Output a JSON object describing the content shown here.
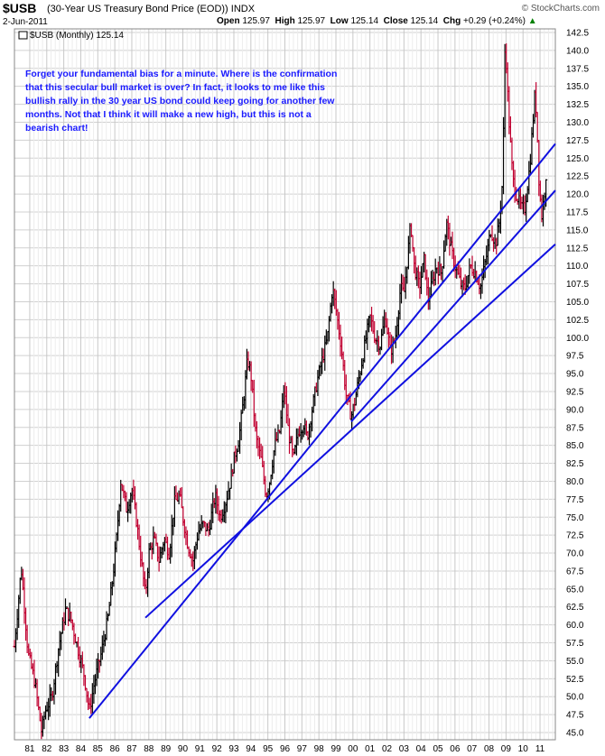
{
  "header": {
    "symbol": "$USB",
    "description": "(30-Year US Treasury Bond Price (EOD))",
    "exchange": "INDX",
    "brand": "© StockCharts.com",
    "date": "2-Jun-2011",
    "open_label": "Open",
    "open": "125.97",
    "high_label": "High",
    "high": "125.97",
    "low_label": "Low",
    "low": "125.14",
    "close_label": "Close",
    "close": "125.14",
    "chg_label": "Chg",
    "chg": "+0.29 (+0.24%)"
  },
  "legend": {
    "text": "$USB (Monthly) 125.14"
  },
  "annotation": "Forget your fundamental bias for a minute. Where is the confirmation that this secular bull market is over? In fact, it looks to me like this bullish rally in the 30 year US bond could keep going for another few months. Not that I think it will make a new high, but this is not a bearish chart!",
  "colors": {
    "up": "#000000",
    "down": "#c00030",
    "trendline": "#1010e0",
    "grid": "#d0d0d0",
    "annotation": "#1a1aff",
    "arrow": "#008000"
  },
  "chart_data": {
    "type": "bar",
    "subtype": "ohlc-monthly",
    "ylim": [
      44,
      143
    ],
    "xlim": [
      1980.1,
      2011.9
    ],
    "y_ticks": [
      "45.0",
      "47.5",
      "50.0",
      "52.5",
      "55.0",
      "57.5",
      "60.0",
      "62.5",
      "65.0",
      "67.5",
      "70.0",
      "72.5",
      "75.0",
      "77.5",
      "80.0",
      "82.5",
      "85.0",
      "87.5",
      "90.0",
      "92.5",
      "95.0",
      "97.5",
      "100.0",
      "102.5",
      "105.0",
      "107.5",
      "110.0",
      "112.5",
      "115.0",
      "117.5",
      "120.0",
      "122.5",
      "125.0",
      "127.5",
      "130.0",
      "132.5",
      "135.0",
      "137.5",
      "140.0",
      "142.5"
    ],
    "x_ticks": [
      "81",
      "82",
      "83",
      "84",
      "85",
      "86",
      "87",
      "88",
      "89",
      "90",
      "91",
      "92",
      "93",
      "94",
      "95",
      "96",
      "97",
      "98",
      "99",
      "00",
      "01",
      "02",
      "03",
      "04",
      "05",
      "06",
      "07",
      "08",
      "09",
      "10",
      "11"
    ],
    "anchors": [
      [
        1980.1,
        57
      ],
      [
        1980.5,
        68
      ],
      [
        1980.9,
        56
      ],
      [
        1981.3,
        52
      ],
      [
        1981.7,
        45
      ],
      [
        1981.9,
        48
      ],
      [
        1982.3,
        50
      ],
      [
        1982.7,
        57
      ],
      [
        1983.1,
        62
      ],
      [
        1983.4,
        61
      ],
      [
        1983.8,
        57
      ],
      [
        1984.2,
        53
      ],
      [
        1984.5,
        48
      ],
      [
        1984.8,
        52
      ],
      [
        1985.2,
        56
      ],
      [
        1985.6,
        61
      ],
      [
        1985.9,
        67
      ],
      [
        1986.1,
        72
      ],
      [
        1986.35,
        80
      ],
      [
        1986.7,
        76
      ],
      [
        1987.0,
        79
      ],
      [
        1987.3,
        74
      ],
      [
        1987.6,
        68
      ],
      [
        1987.8,
        64
      ],
      [
        1988.0,
        70
      ],
      [
        1988.3,
        72
      ],
      [
        1988.6,
        69
      ],
      [
        1988.9,
        72
      ],
      [
        1989.2,
        70
      ],
      [
        1989.5,
        77
      ],
      [
        1989.8,
        78
      ],
      [
        1990.0,
        75
      ],
      [
        1990.3,
        71
      ],
      [
        1990.6,
        69
      ],
      [
        1990.9,
        73
      ],
      [
        1991.2,
        74
      ],
      [
        1991.5,
        73
      ],
      [
        1991.9,
        78
      ],
      [
        1992.2,
        75
      ],
      [
        1992.5,
        77
      ],
      [
        1992.8,
        80
      ],
      [
        1993.0,
        83
      ],
      [
        1993.3,
        86
      ],
      [
        1993.6,
        92
      ],
      [
        1993.8,
        97
      ],
      [
        1994.0,
        95
      ],
      [
        1994.3,
        86
      ],
      [
        1994.6,
        83
      ],
      [
        1994.9,
        78
      ],
      [
        1995.1,
        80
      ],
      [
        1995.4,
        85
      ],
      [
        1995.7,
        87
      ],
      [
        1995.95,
        93
      ],
      [
        1996.2,
        87
      ],
      [
        1996.5,
        83
      ],
      [
        1996.8,
        87
      ],
      [
        1997.1,
        88
      ],
      [
        1997.3,
        86
      ],
      [
        1997.6,
        90
      ],
      [
        1997.9,
        94
      ],
      [
        1998.2,
        97
      ],
      [
        1998.5,
        100
      ],
      [
        1998.8,
        107
      ],
      [
        1999.0,
        104
      ],
      [
        1999.3,
        99
      ],
      [
        1999.6,
        92
      ],
      [
        1999.9,
        89
      ],
      [
        2000.1,
        91
      ],
      [
        2000.4,
        95
      ],
      [
        2000.7,
        99
      ],
      [
        2001.0,
        103
      ],
      [
        2001.3,
        100
      ],
      [
        2001.6,
        99
      ],
      [
        2001.9,
        103
      ],
      [
        2002.2,
        98
      ],
      [
        2002.5,
        100
      ],
      [
        2002.8,
        107
      ],
      [
        2003.0,
        106
      ],
      [
        2003.4,
        116
      ],
      [
        2003.6,
        110
      ],
      [
        2003.9,
        107
      ],
      [
        2004.2,
        111
      ],
      [
        2004.4,
        105
      ],
      [
        2004.7,
        108
      ],
      [
        2004.9,
        110
      ],
      [
        2005.2,
        109
      ],
      [
        2005.5,
        116
      ],
      [
        2005.8,
        112
      ],
      [
        2006.0,
        110
      ],
      [
        2006.4,
        107
      ],
      [
        2006.6,
        107
      ],
      [
        2006.9,
        110
      ],
      [
        2007.2,
        109
      ],
      [
        2007.5,
        107
      ],
      [
        2007.9,
        112
      ],
      [
        2008.1,
        115
      ],
      [
        2008.4,
        113
      ],
      [
        2008.6,
        116
      ],
      [
        2008.8,
        122
      ],
      [
        2008.95,
        142
      ],
      [
        2009.15,
        131
      ],
      [
        2009.4,
        122
      ],
      [
        2009.6,
        120
      ],
      [
        2009.9,
        118
      ],
      [
        2010.1,
        118
      ],
      [
        2010.4,
        124
      ],
      [
        2010.7,
        134
      ],
      [
        2010.8,
        131
      ],
      [
        2010.95,
        121
      ],
      [
        2011.1,
        117
      ],
      [
        2011.3,
        121
      ],
      [
        2011.42,
        125.14
      ]
    ],
    "trendlines": [
      {
        "from": [
          1984.5,
          47.0
        ],
        "to": [
          2011.9,
          127.0
        ]
      },
      {
        "from": [
          1987.8,
          61.0
        ],
        "to": [
          2011.9,
          113.0
        ]
      },
      {
        "from": [
          1999.9,
          88.3
        ],
        "to": [
          2011.9,
          120.5
        ]
      }
    ]
  }
}
